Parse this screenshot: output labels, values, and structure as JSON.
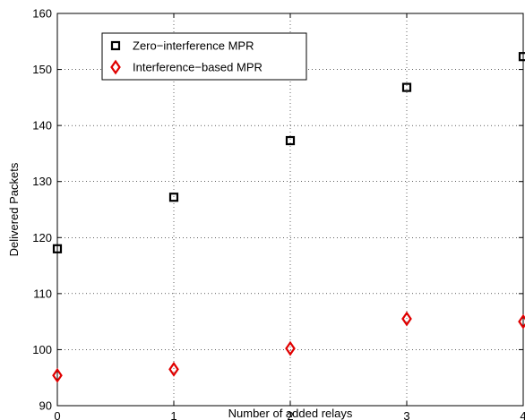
{
  "chart_data": {
    "type": "scatter",
    "xlabel": "Number of added relays",
    "ylabel": "Delivered Packets",
    "xlim": [
      0,
      4
    ],
    "ylim": [
      90,
      160
    ],
    "xticks": [
      0,
      1,
      2,
      3,
      4
    ],
    "yticks": [
      90,
      100,
      110,
      120,
      130,
      140,
      150,
      160
    ],
    "xtick_labels": [
      "0",
      "1",
      "2",
      "3",
      "4"
    ],
    "ytick_labels": [
      "90",
      "100",
      "110",
      "120",
      "130",
      "140",
      "150",
      "160"
    ],
    "grid": true,
    "grid_style": "dotted",
    "legend_position": "top-left",
    "series": [
      {
        "name": "Zero−interference MPR",
        "marker": "square",
        "color": "#000000",
        "x": [
          0,
          1,
          2,
          3,
          4
        ],
        "y": [
          118,
          127.2,
          137.3,
          146.8,
          152.3
        ]
      },
      {
        "name": "Interference−based MPR",
        "marker": "diamond",
        "color": "#e00000",
        "x": [
          0,
          1,
          2,
          3,
          4
        ],
        "y": [
          95.4,
          96.5,
          100.2,
          105.5,
          105
        ]
      }
    ]
  }
}
